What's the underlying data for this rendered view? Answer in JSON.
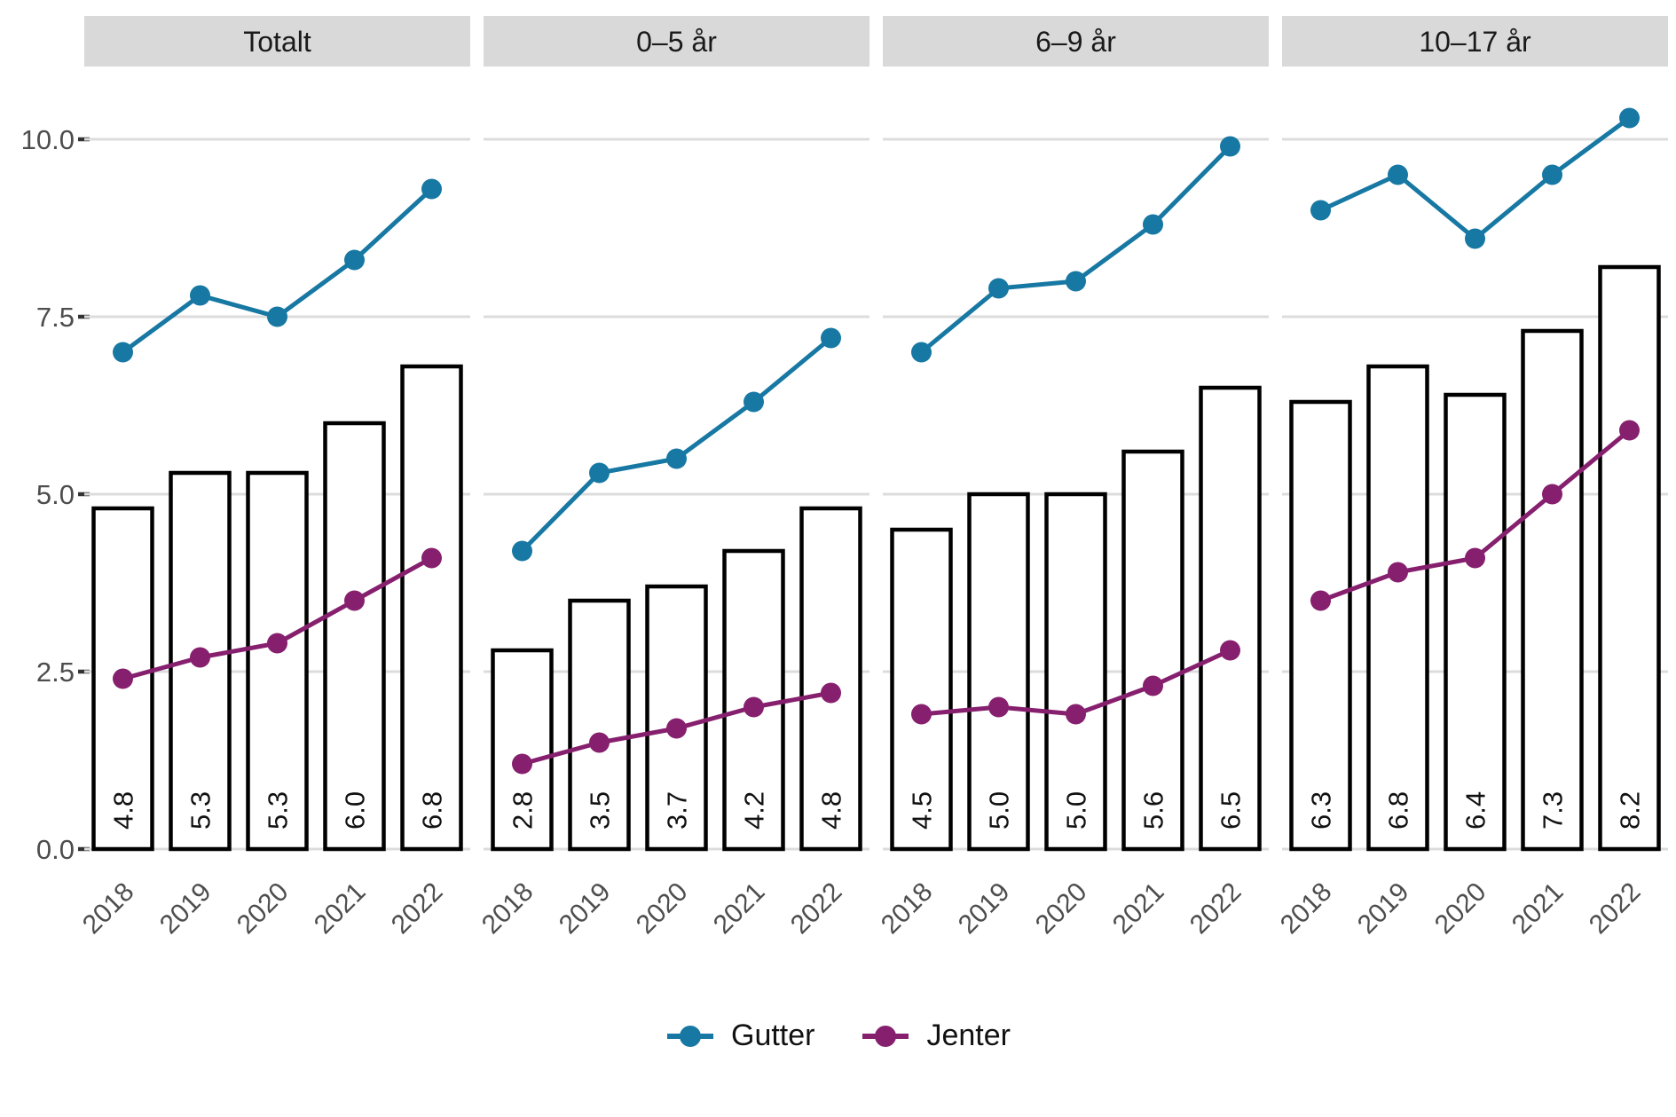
{
  "colors": {
    "gutter": "#1778A3",
    "jenter": "#86206E",
    "bar_fill": "#FFFFFF",
    "bar_stroke": "#000000",
    "grid": "#DCDCDC",
    "strip_bg": "#D9D9D9",
    "strip_text": "#1A1A1A",
    "axis_text": "#4D4D4D",
    "tick_mark": "#333333",
    "bar_label_text": "#111111",
    "legend_text": "#111111"
  },
  "y_axis": {
    "ticks": [
      0,
      2.5,
      5,
      7.5,
      10
    ],
    "labels": [
      "0.0",
      "2.5",
      "5.0",
      "7.5",
      "10.0"
    ]
  },
  "legend": {
    "items": [
      {
        "label": "Gutter",
        "color_key": "gutter"
      },
      {
        "label": "Jenter",
        "color_key": "jenter"
      }
    ]
  },
  "chart_data": {
    "type": "bar",
    "subtype": "faceted bar chart with overlaid line series (points)",
    "categories": [
      "2018",
      "2019",
      "2020",
      "2021",
      "2022"
    ],
    "ylim": [
      0,
      10.9
    ],
    "grid": "horizontal gridlines at 0.0 / 2.5 / 5.0 / 7.5 / 10.0, no vertical grid",
    "legend_position": "bottom center",
    "panels": [
      {
        "title": "Totalt",
        "bar_values": [
          4.8,
          5.3,
          5.3,
          6.0,
          6.8
        ],
        "bar_labels": [
          "4.8",
          "5.3",
          "5.3",
          "6.0",
          "6.8"
        ],
        "series": [
          {
            "name": "Gutter",
            "values": [
              7.0,
              7.8,
              7.5,
              8.3,
              9.3
            ]
          },
          {
            "name": "Jenter",
            "values": [
              2.4,
              2.7,
              2.9,
              3.5,
              4.1
            ]
          }
        ]
      },
      {
        "title": "0–5 år",
        "bar_values": [
          2.8,
          3.5,
          3.7,
          4.2,
          4.8
        ],
        "bar_labels": [
          "2.8",
          "3.5",
          "3.7",
          "4.2",
          "4.8"
        ],
        "series": [
          {
            "name": "Gutter",
            "values": [
              4.2,
              5.3,
              5.5,
              6.3,
              7.2
            ]
          },
          {
            "name": "Jenter",
            "values": [
              1.2,
              1.5,
              1.7,
              2.0,
              2.2
            ]
          }
        ]
      },
      {
        "title": "6–9 år",
        "bar_values": [
          4.5,
          5.0,
          5.0,
          5.6,
          6.5
        ],
        "bar_labels": [
          "4.5",
          "5.0",
          "5.0",
          "5.6",
          "6.5"
        ],
        "series": [
          {
            "name": "Gutter",
            "values": [
              7.0,
              7.9,
              8.0,
              8.8,
              9.9
            ]
          },
          {
            "name": "Jenter",
            "values": [
              1.9,
              2.0,
              1.9,
              2.3,
              2.8
            ]
          }
        ]
      },
      {
        "title": "10–17 år",
        "bar_values": [
          6.3,
          6.8,
          6.4,
          7.3,
          8.2
        ],
        "bar_labels": [
          "6.3",
          "6.8",
          "6.4",
          "7.3",
          "8.2"
        ],
        "series": [
          {
            "name": "Gutter",
            "values": [
              9.0,
              9.5,
              8.6,
              9.5,
              10.3
            ]
          },
          {
            "name": "Jenter",
            "values": [
              3.5,
              3.9,
              4.1,
              5.0,
              5.9
            ]
          }
        ]
      }
    ]
  }
}
